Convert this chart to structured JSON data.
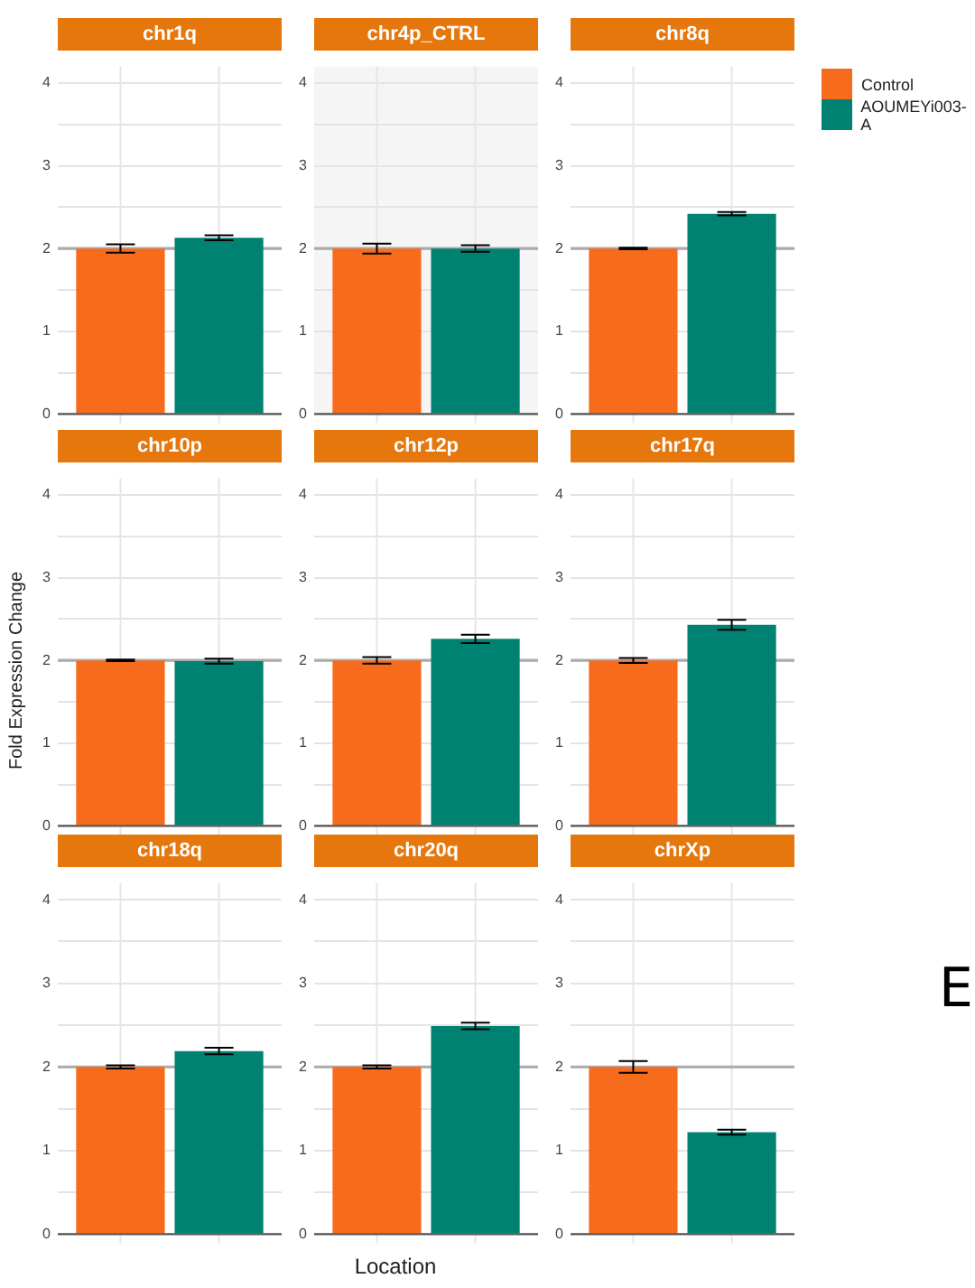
{
  "chart_data": [
    {
      "type": "bar",
      "title": "chr1q",
      "tick_labels": "y",
      "categories": [
        null
      ],
      "series": [
        {
          "name": "Control",
          "color": "#f76b1c",
          "values": [
            2.0
          ],
          "errors": [
            0.05
          ]
        },
        {
          "name": "AOUMEYi003-A",
          "color": "#008272",
          "values": [
            2.13
          ],
          "errors": [
            0.03
          ]
        }
      ],
      "ylim": [
        0,
        4.2
      ],
      "yticks": [
        0,
        {
          "value": 0.5,
          "label": null
        },
        1,
        {
          "value": 1.5,
          "label": null
        },
        2,
        {
          "value": 2.5,
          "label": null
        },
        3,
        {
          "value": 3.5,
          "label": null
        },
        4
      ],
      "grid": true,
      "legend": "right",
      "ref_lines": [
        {
          "axis": "y",
          "value": 2,
          "color": "#aaaaaa"
        }
      ]
    },
    {
      "type": "bar",
      "title": "chr4p_CTRL",
      "tick_labels": "y",
      "categories": [
        null
      ],
      "series": [
        {
          "color": "#f76b1c",
          "values": [
            2.0
          ],
          "errors": [
            0.06
          ]
        },
        {
          "color": "#008272",
          "values": [
            2.0
          ],
          "errors": [
            0.04
          ]
        }
      ],
      "ylim": [
        0,
        4.2
      ],
      "yticks": [
        0,
        {
          "value": 0.5,
          "label": null
        },
        1,
        {
          "value": 1.5,
          "label": null
        },
        2,
        {
          "value": 2.5,
          "label": null
        },
        3,
        {
          "value": 3.5,
          "label": null
        },
        4
      ],
      "grid": true,
      "bands": [
        {
          "axis": "y",
          "from": 0,
          "to": 4.2,
          "color": "#f5f5f5"
        }
      ],
      "ref_lines": [
        {
          "axis": "y",
          "value": 2,
          "color": "#aaaaaa"
        }
      ]
    },
    {
      "type": "bar",
      "title": "chr8q",
      "tick_labels": "y",
      "categories": [
        null
      ],
      "series": [
        {
          "color": "#f76b1c",
          "values": [
            2.0
          ],
          "errors": [
            0.01
          ]
        },
        {
          "color": "#008272",
          "values": [
            2.42
          ],
          "errors": [
            0.02
          ]
        }
      ],
      "ylim": [
        0,
        4.2
      ],
      "yticks": [
        0,
        {
          "value": 0.5,
          "label": null
        },
        1,
        {
          "value": 1.5,
          "label": null
        },
        2,
        {
          "value": 2.5,
          "label": null
        },
        3,
        {
          "value": 3.5,
          "label": null
        },
        4
      ],
      "grid": true,
      "ref_lines": [
        {
          "axis": "y",
          "value": 2,
          "color": "#aaaaaa"
        }
      ]
    },
    {
      "type": "bar",
      "title": "chr10p",
      "tick_labels": "y",
      "ylabel": "Fold Expression Change",
      "categories": [
        null
      ],
      "series": [
        {
          "color": "#f76b1c",
          "values": [
            2.0
          ],
          "errors": [
            0.01
          ]
        },
        {
          "color": "#008272",
          "values": [
            1.99
          ],
          "errors": [
            0.03
          ]
        }
      ],
      "ylim": [
        0,
        4.2
      ],
      "yticks": [
        0,
        {
          "value": 0.5,
          "label": null
        },
        1,
        {
          "value": 1.5,
          "label": null
        },
        2,
        {
          "value": 2.5,
          "label": null
        },
        3,
        {
          "value": 3.5,
          "label": null
        },
        4
      ],
      "grid": true,
      "ref_lines": [
        {
          "axis": "y",
          "value": 2,
          "color": "#aaaaaa"
        }
      ]
    },
    {
      "type": "bar",
      "title": "chr12p",
      "tick_labels": "y",
      "categories": [
        null
      ],
      "series": [
        {
          "color": "#f76b1c",
          "values": [
            2.0
          ],
          "errors": [
            0.04
          ]
        },
        {
          "color": "#008272",
          "values": [
            2.26
          ],
          "errors": [
            0.05
          ]
        }
      ],
      "ylim": [
        0,
        4.2
      ],
      "yticks": [
        0,
        {
          "value": 0.5,
          "label": null
        },
        1,
        {
          "value": 1.5,
          "label": null
        },
        2,
        {
          "value": 2.5,
          "label": null
        },
        3,
        {
          "value": 3.5,
          "label": null
        },
        4
      ],
      "grid": true,
      "ref_lines": [
        {
          "axis": "y",
          "value": 2,
          "color": "#aaaaaa"
        }
      ]
    },
    {
      "type": "bar",
      "title": "chr17q",
      "tick_labels": "y",
      "categories": [
        null
      ],
      "series": [
        {
          "color": "#f76b1c",
          "values": [
            2.0
          ],
          "errors": [
            0.03
          ]
        },
        {
          "color": "#008272",
          "values": [
            2.43
          ],
          "errors": [
            0.06
          ]
        }
      ],
      "ylim": [
        0,
        4.2
      ],
      "yticks": [
        0,
        {
          "value": 0.5,
          "label": null
        },
        1,
        {
          "value": 1.5,
          "label": null
        },
        2,
        {
          "value": 2.5,
          "label": null
        },
        3,
        {
          "value": 3.5,
          "label": null
        },
        4
      ],
      "grid": true,
      "ref_lines": [
        {
          "axis": "y",
          "value": 2,
          "color": "#aaaaaa"
        }
      ]
    },
    {
      "type": "bar",
      "title": "chr18q",
      "tick_labels": "y",
      "categories": [
        null
      ],
      "series": [
        {
          "color": "#f76b1c",
          "values": [
            2.0
          ],
          "errors": [
            0.02
          ]
        },
        {
          "color": "#008272",
          "values": [
            2.19
          ],
          "errors": [
            0.04
          ]
        }
      ],
      "ylim": [
        0,
        4.2
      ],
      "yticks": [
        0,
        {
          "value": 0.5,
          "label": null
        },
        1,
        {
          "value": 1.5,
          "label": null
        },
        2,
        {
          "value": 2.5,
          "label": null
        },
        3,
        {
          "value": 3.5,
          "label": null
        },
        4
      ],
      "grid": true,
      "ref_lines": [
        {
          "axis": "y",
          "value": 2,
          "color": "#aaaaaa"
        }
      ]
    },
    {
      "type": "bar",
      "title": "chr20q",
      "tick_labels": "y",
      "xlabel": "Location",
      "categories": [
        null
      ],
      "series": [
        {
          "color": "#f76b1c",
          "values": [
            2.0
          ],
          "errors": [
            0.02
          ]
        },
        {
          "color": "#008272",
          "values": [
            2.49
          ],
          "errors": [
            0.04
          ]
        }
      ],
      "ylim": [
        0,
        4.2
      ],
      "yticks": [
        0,
        {
          "value": 0.5,
          "label": null
        },
        1,
        {
          "value": 1.5,
          "label": null
        },
        2,
        {
          "value": 2.5,
          "label": null
        },
        3,
        {
          "value": 3.5,
          "label": null
        },
        4
      ],
      "grid": true,
      "ref_lines": [
        {
          "axis": "y",
          "value": 2,
          "color": "#aaaaaa"
        }
      ]
    },
    {
      "type": "bar",
      "title": "chrXp",
      "tick_labels": "y",
      "annotations": [
        "E"
      ],
      "categories": [
        null
      ],
      "series": [
        {
          "color": "#f76b1c",
          "values": [
            2.0
          ],
          "errors": [
            0.07
          ]
        },
        {
          "color": "#008272",
          "values": [
            1.22
          ],
          "errors": [
            0.03
          ]
        }
      ],
      "ylim": [
        0,
        4.2
      ],
      "yticks": [
        0,
        {
          "value": 0.5,
          "label": null
        },
        1,
        {
          "value": 1.5,
          "label": null
        },
        2,
        {
          "value": 2.5,
          "label": null
        },
        3,
        {
          "value": 3.5,
          "label": null
        },
        4
      ],
      "grid": true,
      "ref_lines": [
        {
          "axis": "y",
          "value": 2,
          "color": "#aaaaaa"
        }
      ]
    }
  ]
}
